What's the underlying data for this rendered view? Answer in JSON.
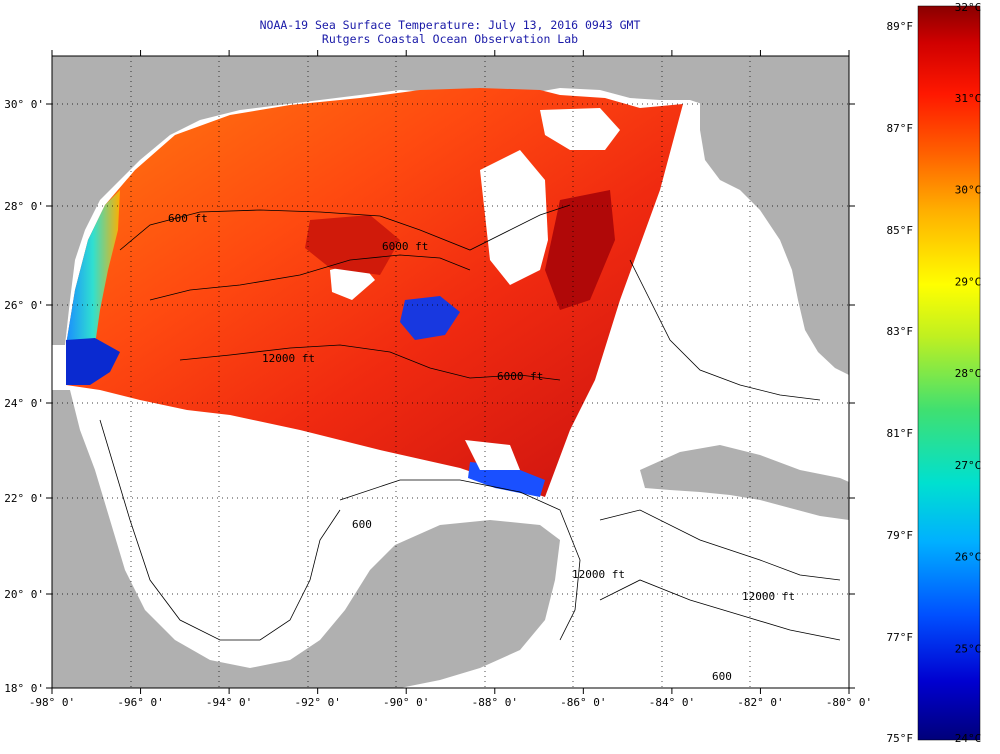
{
  "title": "NOAA-19 Sea Surface Temperature:  July 13, 2016 0943 GMT",
  "subtitle": "Rutgers Coastal Ocean Observation Lab",
  "map": {
    "lon_range": [
      -98,
      -80
    ],
    "lat_range": [
      18,
      31
    ],
    "lon_ticks": [
      "-98° 0'",
      "-96° 0'",
      "-94° 0'",
      "-92° 0'",
      "-90° 0'",
      "-88° 0'",
      "-86° 0'",
      "-84° 0'",
      "-82° 0'",
      "-80° 0'"
    ],
    "lat_ticks": [
      "30° 0'",
      "28° 0'",
      "26° 0'",
      "24° 0'",
      "22° 0'",
      "20° 0'",
      "18° 0'"
    ],
    "contour_labels": [
      "600 ft",
      "6000 ft",
      "12000 ft",
      "6000 ft",
      "600",
      "12000 ft",
      "12000 ft",
      "600"
    ],
    "land_color": "#b0b0b0",
    "no_data_color": "#ffffff"
  },
  "colorbar": {
    "fahrenheit_labels": [
      "89°F",
      "87°F",
      "85°F",
      "83°F",
      "81°F",
      "79°F",
      "77°F",
      "75°F"
    ],
    "celsius_labels": [
      "32°C",
      "31°C",
      "30°C",
      "29°C",
      "28°C",
      "27°C",
      "26°C",
      "25°C",
      "24°C"
    ],
    "celsius_range": [
      24,
      32
    ],
    "colors": [
      "#00007a",
      "#0000d0",
      "#0050ff",
      "#00b0ff",
      "#00e0d0",
      "#40e070",
      "#c0f020",
      "#ffff00",
      "#ffb000",
      "#ff6000",
      "#ff1800",
      "#d00000",
      "#8a0000"
    ]
  }
}
